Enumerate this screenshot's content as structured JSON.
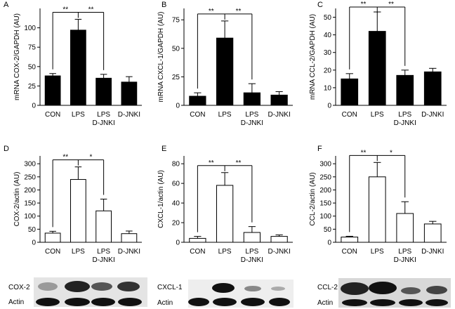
{
  "chart_data": [
    {
      "type": "bar",
      "panel": "A",
      "y_label": "mRNA COX-2/GAPDH (AU)",
      "categories": [
        [
          "CON"
        ],
        [
          "LPS"
        ],
        [
          "LPS",
          "D-JNKI"
        ],
        [
          "D-JNKI"
        ]
      ],
      "values": [
        38,
        97,
        35,
        30
      ],
      "errors": [
        3,
        14,
        5,
        7
      ],
      "color": "#000000",
      "edge_color": "#000000",
      "ylim": [
        0,
        125
      ],
      "yticks": [
        0,
        25,
        50,
        75,
        100
      ],
      "annotations": [
        "**",
        "**"
      ]
    },
    {
      "type": "bar",
      "panel": "B",
      "y_label": "mRNA CXCL-1/GAPDH (AU)",
      "categories": [
        [
          "CON"
        ],
        [
          "LPS"
        ],
        [
          "LPS",
          "D-JNKI"
        ],
        [
          "D-JNKI"
        ]
      ],
      "values": [
        8,
        59,
        11,
        9
      ],
      "errors": [
        3,
        15,
        8,
        3
      ],
      "color": "#000000",
      "edge_color": "#000000",
      "ylim": [
        0,
        85
      ],
      "yticks": [
        0,
        25,
        50,
        75
      ],
      "annotations": [
        "**",
        "**"
      ]
    },
    {
      "type": "bar",
      "panel": "C",
      "y_label": "mRNA CCL-2/GAPDH (AU)",
      "categories": [
        [
          "CON"
        ],
        [
          "LPS"
        ],
        [
          "LPS",
          "D-JNKI"
        ],
        [
          "D-JNKI"
        ]
      ],
      "values": [
        15,
        42,
        17,
        19
      ],
      "errors": [
        3,
        11,
        3,
        2
      ],
      "color": "#000000",
      "edge_color": "#000000",
      "ylim": [
        0,
        55
      ],
      "yticks": [
        0,
        10,
        20,
        30,
        40,
        50
      ],
      "annotations": [
        "**",
        "**"
      ]
    },
    {
      "type": "bar",
      "panel": "D",
      "y_label": "COX-2/actin (AU)",
      "categories": [
        [
          "CON"
        ],
        [
          "LPS"
        ],
        [
          "LPS",
          "D-JNKI"
        ],
        [
          "D-JNKI"
        ]
      ],
      "values": [
        35,
        240,
        120,
        33
      ],
      "errors": [
        7,
        48,
        45,
        10
      ],
      "color": "#ffffff",
      "edge_color": "#000000",
      "ylim": [
        0,
        330
      ],
      "yticks": [
        0,
        50,
        100,
        150,
        200,
        250,
        300
      ],
      "annotations": [
        "**",
        "*"
      ]
    },
    {
      "type": "bar",
      "panel": "E",
      "y_label": "CXCL-1/actin (AU)",
      "categories": [
        [
          "CON"
        ],
        [
          "LPS"
        ],
        [
          "LPS",
          "D-JNKI"
        ],
        [
          "D-JNKI"
        ]
      ],
      "values": [
        4,
        58,
        10,
        6
      ],
      "errors": [
        2,
        13,
        6,
        1.5
      ],
      "color": "#ffffff",
      "edge_color": "#000000",
      "ylim": [
        0,
        88
      ],
      "yticks": [
        0,
        20,
        40,
        60,
        80
      ],
      "annotations": [
        "**",
        "**"
      ]
    },
    {
      "type": "bar",
      "panel": "F",
      "y_label": "CCL-2/actin (AU)",
      "categories": [
        [
          "CON"
        ],
        [
          "LPS"
        ],
        [
          "LPS",
          "D-JNKI"
        ],
        [
          "D-JNKI"
        ]
      ],
      "values": [
        20,
        250,
        110,
        70
      ],
      "errors": [
        3,
        55,
        45,
        10
      ],
      "color": "#ffffff",
      "edge_color": "#000000",
      "ylim": [
        0,
        330
      ],
      "yticks": [
        0,
        50,
        100,
        150,
        200,
        250,
        300
      ],
      "annotations": [
        "**",
        "*"
      ]
    }
  ],
  "blots": [
    {
      "label": "COX-2",
      "control": "Actin"
    },
    {
      "label": "CXCL-1",
      "control": "Actin"
    },
    {
      "label": "CCL-2",
      "control": "Actin"
    }
  ]
}
